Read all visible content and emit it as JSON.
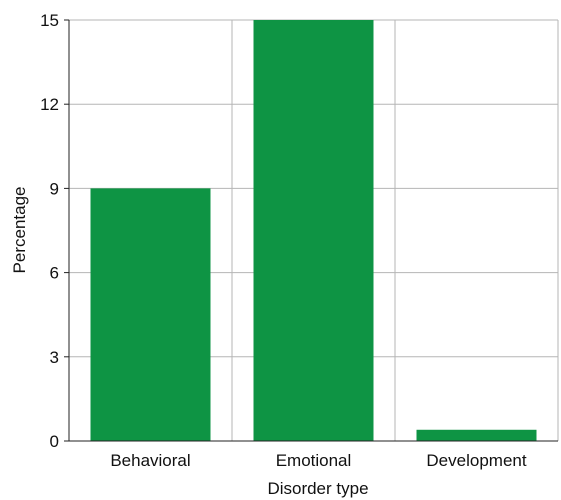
{
  "chart_data": {
    "type": "bar",
    "categories": [
      "Behavioral",
      "Emotional",
      "Development"
    ],
    "values": [
      9,
      15,
      0.4
    ],
    "xlabel": "Disorder type",
    "ylabel": "Percentage",
    "ylim": [
      0,
      15
    ],
    "yticks": [
      0,
      3,
      6,
      9,
      12,
      15
    ],
    "grid": true,
    "bar_color": "#0e9444"
  }
}
